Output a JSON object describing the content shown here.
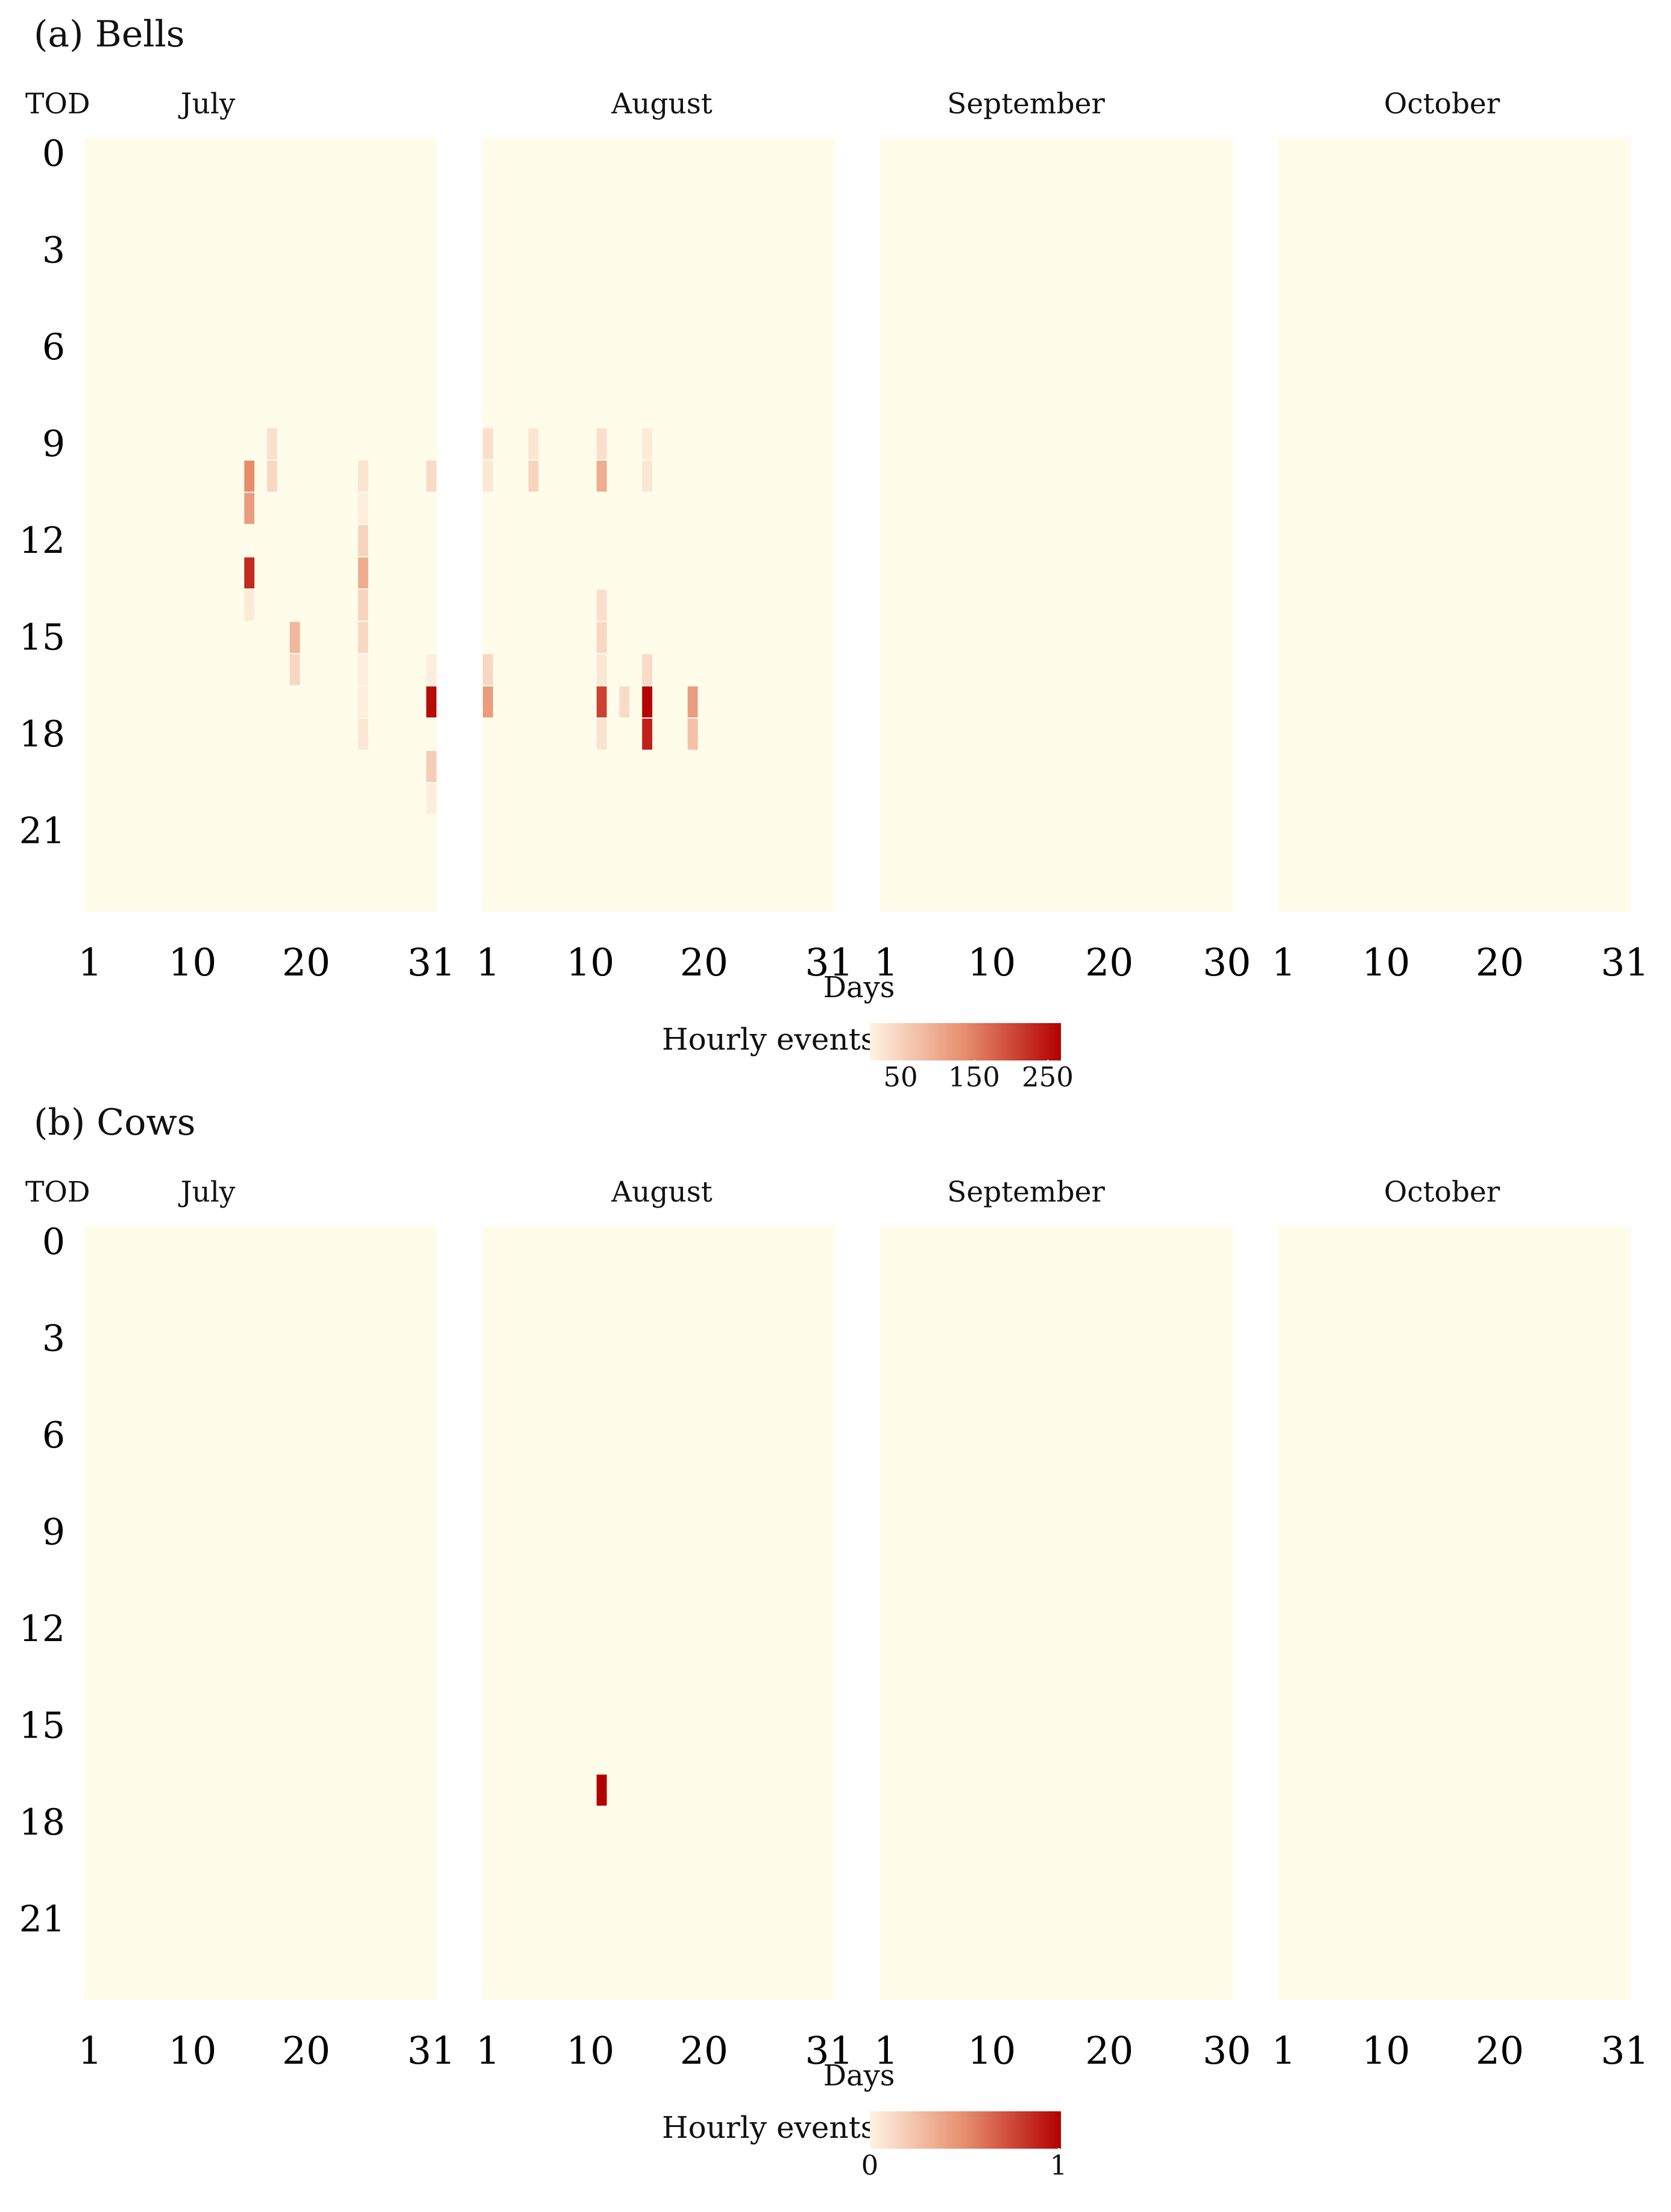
{
  "colors": {
    "background": "#fffcea",
    "low": "#fff3e3",
    "mid": "#e68d6c",
    "high": "#b30000"
  },
  "panels": [
    {
      "id": "a",
      "title": "(a) Bells",
      "tod_label": "TOD",
      "days_label": "Days",
      "legend": {
        "title": "Hourly events",
        "min": 0,
        "max": 260,
        "ticks": [
          50,
          150,
          250
        ]
      }
    },
    {
      "id": "b",
      "title": "(b) Cows",
      "tod_label": "TOD",
      "days_label": "Days",
      "legend": {
        "title": "Hourly events",
        "min": 0,
        "max": 1,
        "ticks": [
          0,
          1
        ]
      }
    }
  ],
  "chart_data": [
    {
      "type": "heatmap",
      "title": "(a) Bells",
      "ylabel": "TOD",
      "xlabel": "Days",
      "hour_ticks": [
        0,
        3,
        6,
        9,
        12,
        15,
        18,
        21
      ],
      "months": [
        {
          "name": "July",
          "days": 31,
          "day_ticks": [
            1,
            10,
            20,
            31
          ]
        },
        {
          "name": "August",
          "days": 31,
          "day_ticks": [
            1,
            10,
            20,
            31
          ]
        },
        {
          "name": "September",
          "days": 30,
          "day_ticks": [
            1,
            10,
            20,
            30
          ]
        },
        {
          "name": "October",
          "days": 31,
          "day_ticks": [
            1,
            10,
            20,
            31
          ]
        }
      ],
      "colorbar": {
        "label": "Hourly events",
        "range": [
          0,
          260
        ],
        "ticks": [
          50,
          150,
          250
        ]
      },
      "cells": [
        {
          "month": "July",
          "day": 15,
          "hour": 10,
          "value": 130
        },
        {
          "month": "July",
          "day": 15,
          "hour": 11,
          "value": 110
        },
        {
          "month": "July",
          "day": 15,
          "hour": 13,
          "value": 220
        },
        {
          "month": "July",
          "day": 15,
          "hour": 14,
          "value": 10
        },
        {
          "month": "July",
          "day": 17,
          "hour": 9,
          "value": 25
        },
        {
          "month": "July",
          "day": 17,
          "hour": 10,
          "value": 35
        },
        {
          "month": "July",
          "day": 19,
          "hour": 15,
          "value": 75
        },
        {
          "month": "July",
          "day": 19,
          "hour": 16,
          "value": 35
        },
        {
          "month": "July",
          "day": 25,
          "hour": 10,
          "value": 20
        },
        {
          "month": "July",
          "day": 25,
          "hour": 11,
          "value": 6
        },
        {
          "month": "July",
          "day": 25,
          "hour": 12,
          "value": 40
        },
        {
          "month": "July",
          "day": 25,
          "hour": 13,
          "value": 90
        },
        {
          "month": "July",
          "day": 25,
          "hour": 14,
          "value": 40
        },
        {
          "month": "July",
          "day": 25,
          "hour": 15,
          "value": 35
        },
        {
          "month": "July",
          "day": 25,
          "hour": 16,
          "value": 6
        },
        {
          "month": "July",
          "day": 25,
          "hour": 17,
          "value": 6
        },
        {
          "month": "July",
          "day": 25,
          "hour": 18,
          "value": 15
        },
        {
          "month": "July",
          "day": 31,
          "hour": 10,
          "value": 30
        },
        {
          "month": "July",
          "day": 31,
          "hour": 16,
          "value": 8
        },
        {
          "month": "July",
          "day": 31,
          "hour": 17,
          "value": 250
        },
        {
          "month": "July",
          "day": 31,
          "hour": 19,
          "value": 50
        },
        {
          "month": "July",
          "day": 31,
          "hour": 20,
          "value": 8
        },
        {
          "month": "August",
          "day": 1,
          "hour": 9,
          "value": 25
        },
        {
          "month": "August",
          "day": 1,
          "hour": 10,
          "value": 15
        },
        {
          "month": "August",
          "day": 1,
          "hour": 16,
          "value": 35
        },
        {
          "month": "August",
          "day": 1,
          "hour": 17,
          "value": 110
        },
        {
          "month": "August",
          "day": 5,
          "hour": 9,
          "value": 18
        },
        {
          "month": "August",
          "day": 5,
          "hour": 10,
          "value": 40
        },
        {
          "month": "August",
          "day": 11,
          "hour": 9,
          "value": 25
        },
        {
          "month": "August",
          "day": 11,
          "hour": 10,
          "value": 90
        },
        {
          "month": "August",
          "day": 11,
          "hour": 14,
          "value": 25
        },
        {
          "month": "August",
          "day": 11,
          "hour": 15,
          "value": 35
        },
        {
          "month": "August",
          "day": 11,
          "hour": 16,
          "value": 15
        },
        {
          "month": "August",
          "day": 11,
          "hour": 17,
          "value": 200
        },
        {
          "month": "August",
          "day": 11,
          "hour": 18,
          "value": 20
        },
        {
          "month": "August",
          "day": 13,
          "hour": 17,
          "value": 30
        },
        {
          "month": "August",
          "day": 15,
          "hour": 9,
          "value": 12
        },
        {
          "month": "August",
          "day": 15,
          "hour": 10,
          "value": 15
        },
        {
          "month": "August",
          "day": 15,
          "hour": 16,
          "value": 30
        },
        {
          "month": "August",
          "day": 15,
          "hour": 17,
          "value": 255
        },
        {
          "month": "August",
          "day": 15,
          "hour": 18,
          "value": 230
        },
        {
          "month": "August",
          "day": 19,
          "hour": 17,
          "value": 110
        },
        {
          "month": "August",
          "day": 19,
          "hour": 18,
          "value": 65
        }
      ]
    },
    {
      "type": "heatmap",
      "title": "(b) Cows",
      "ylabel": "TOD",
      "xlabel": "Days",
      "hour_ticks": [
        0,
        3,
        6,
        9,
        12,
        15,
        18,
        21
      ],
      "months": [
        {
          "name": "July",
          "days": 31,
          "day_ticks": [
            1,
            10,
            20,
            31
          ]
        },
        {
          "name": "August",
          "days": 31,
          "day_ticks": [
            1,
            10,
            20,
            31
          ]
        },
        {
          "name": "September",
          "days": 30,
          "day_ticks": [
            1,
            10,
            20,
            30
          ]
        },
        {
          "name": "October",
          "days": 31,
          "day_ticks": [
            1,
            10,
            20,
            31
          ]
        }
      ],
      "colorbar": {
        "label": "Hourly events",
        "range": [
          0,
          1
        ],
        "ticks": [
          0,
          1
        ]
      },
      "cells": [
        {
          "month": "August",
          "day": 11,
          "hour": 17,
          "value": 1
        }
      ]
    }
  ]
}
